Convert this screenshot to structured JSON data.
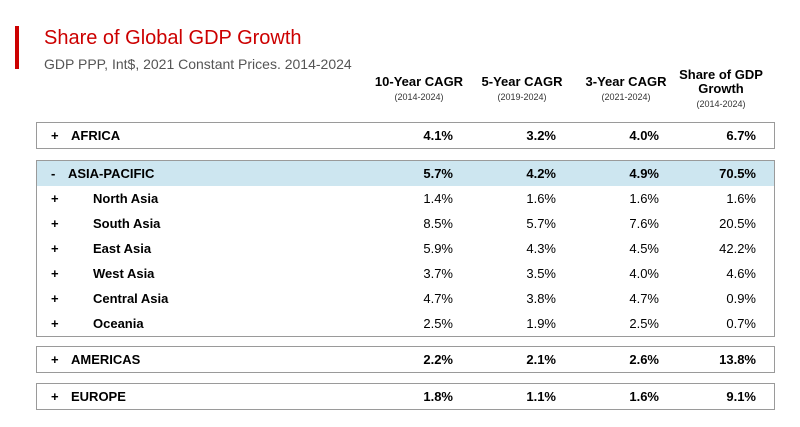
{
  "header": {
    "title": "Share of Global GDP Growth",
    "subtitle": "GDP PPP, Int$, 2021 Constant Prices. 2014-2024"
  },
  "columns": [
    {
      "label": "10-Year CAGR",
      "range": "(2014-2024)"
    },
    {
      "label": "5-Year CAGR",
      "range": "(2019-2024)"
    },
    {
      "label": "3-Year CAGR",
      "range": "(2021-2024)"
    },
    {
      "label": "Share of GDP Growth",
      "range": "(2014-2024)"
    }
  ],
  "groups": {
    "africa": {
      "toggle": "+",
      "name": "AFRICA",
      "values": [
        "4.1%",
        "3.2%",
        "4.0%",
        "6.7%"
      ]
    },
    "asia_pacific": {
      "toggle": "-",
      "name": "ASIA-PACIFIC",
      "values": [
        "5.7%",
        "4.2%",
        "4.9%",
        "70.5%"
      ],
      "children": [
        {
          "toggle": "+",
          "name": "North Asia",
          "values": [
            "1.4%",
            "1.6%",
            "1.6%",
            "1.6%"
          ]
        },
        {
          "toggle": "+",
          "name": "South Asia",
          "values": [
            "8.5%",
            "5.7%",
            "7.6%",
            "20.5%"
          ]
        },
        {
          "toggle": "+",
          "name": "East Asia",
          "values": [
            "5.9%",
            "4.3%",
            "4.5%",
            "42.2%"
          ]
        },
        {
          "toggle": "+",
          "name": "West Asia",
          "values": [
            "3.7%",
            "3.5%",
            "4.0%",
            "4.6%"
          ]
        },
        {
          "toggle": "+",
          "name": "Central Asia",
          "values": [
            "4.7%",
            "3.8%",
            "4.7%",
            "0.9%"
          ]
        },
        {
          "toggle": "+",
          "name": "Oceania",
          "values": [
            "2.5%",
            "1.9%",
            "2.5%",
            "0.7%"
          ]
        }
      ]
    },
    "americas": {
      "toggle": "+",
      "name": "AMERICAS",
      "values": [
        "2.2%",
        "2.1%",
        "2.6%",
        "13.8%"
      ]
    },
    "europe": {
      "toggle": "+",
      "name": "EUROPE",
      "values": [
        "1.8%",
        "1.1%",
        "1.6%",
        "9.1%"
      ]
    }
  },
  "colors": {
    "accent": "#cc0000",
    "highlight": "#cde6f0",
    "border": "#9a9a9a"
  }
}
